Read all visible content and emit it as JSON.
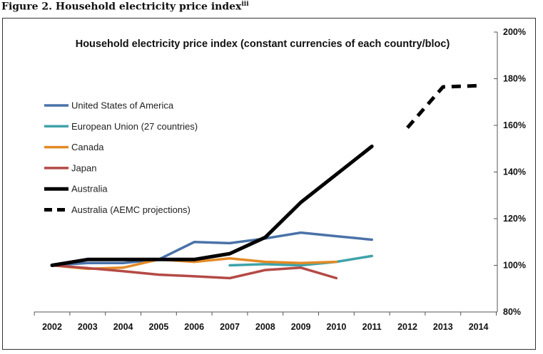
{
  "figure": {
    "caption": "Figure 2. Household electricity price index",
    "caption_sup": "iii"
  },
  "chart_data": {
    "type": "line",
    "title": "Household electricity price index (constant currencies of each country/bloc)",
    "xlabel": "",
    "ylabel": "",
    "categories": [
      "2002",
      "2003",
      "2004",
      "2005",
      "2006",
      "2007",
      "2008",
      "2009",
      "2010",
      "2011",
      "2012",
      "2013",
      "2014"
    ],
    "ylim": [
      80,
      200
    ],
    "y_ticks": [
      80,
      100,
      120,
      140,
      160,
      180,
      200
    ],
    "y_tick_labels": [
      "80%",
      "100%",
      "120%",
      "140%",
      "160%",
      "180%",
      "200%"
    ],
    "y_axis_position": "right",
    "grid": false,
    "legend_position": "left",
    "series": [
      {
        "name": "United States of America",
        "color": "#4a72a8",
        "dash": false,
        "width": 3.5,
        "values": [
          100,
          101,
          101,
          102.5,
          110,
          109.5,
          111.5,
          114,
          112.5,
          111,
          null,
          null,
          null
        ]
      },
      {
        "name": "European Union (27 countries)",
        "color": "#3fa3aa",
        "dash": false,
        "width": 3.5,
        "values": [
          null,
          null,
          null,
          null,
          null,
          100,
          100.5,
          100,
          101.5,
          104,
          null,
          null,
          null
        ]
      },
      {
        "name": "Canada",
        "color": "#e38a26",
        "dash": false,
        "width": 3.5,
        "values": [
          100,
          98.5,
          99,
          102.5,
          101.5,
          103,
          101.5,
          101,
          101.5,
          null,
          null,
          null,
          null
        ]
      },
      {
        "name": "Japan",
        "color": "#b44a46",
        "dash": false,
        "width": 3.5,
        "values": [
          100,
          98.8,
          97.5,
          96,
          95.3,
          94.5,
          98,
          99,
          94.5,
          null,
          null,
          null,
          null
        ]
      },
      {
        "name": "Australia",
        "color": "#000000",
        "dash": false,
        "width": 5,
        "values": [
          100,
          102.5,
          102.5,
          102.5,
          102.5,
          105,
          112,
          127,
          139,
          151,
          null,
          null,
          null
        ]
      },
      {
        "name": "Australia (AEMC projections)",
        "color": "#000000",
        "dash": true,
        "width": 5,
        "values": [
          null,
          null,
          null,
          null,
          null,
          null,
          null,
          null,
          null,
          null,
          159,
          176.5,
          177
        ]
      }
    ]
  }
}
